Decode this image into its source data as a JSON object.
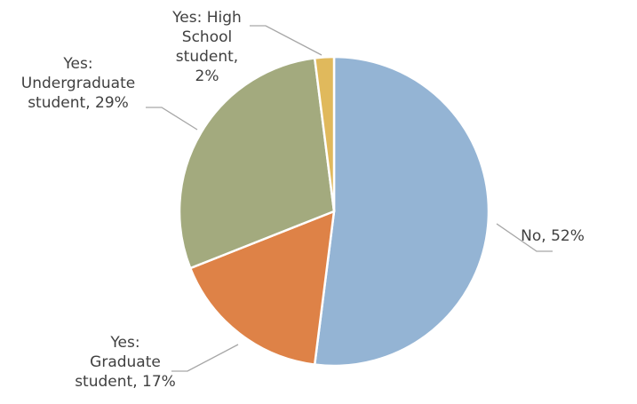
{
  "chart_data": {
    "type": "pie",
    "title": "",
    "slices": [
      {
        "label_lines": [
          "No, 52%"
        ],
        "category": "No",
        "value": 52,
        "color": "#94b4d4"
      },
      {
        "label_lines": [
          "Yes:",
          "Graduate",
          "student, 17%"
        ],
        "category": "Yes: Graduate student",
        "value": 17,
        "color": "#de8247"
      },
      {
        "label_lines": [
          "Yes:",
          "Undergraduate",
          "student, 29%"
        ],
        "category": "Yes: Undergraduate student",
        "value": 29,
        "color": "#a3aa7e"
      },
      {
        "label_lines": [
          "Yes: High",
          "School",
          "student,",
          "2%"
        ],
        "category": "Yes: High School student",
        "value": 2,
        "color": "#e0b95c"
      }
    ],
    "start_angle_deg": 0,
    "direction": "clockwise",
    "legend": "none",
    "data_labels": "outside with leader lines"
  }
}
